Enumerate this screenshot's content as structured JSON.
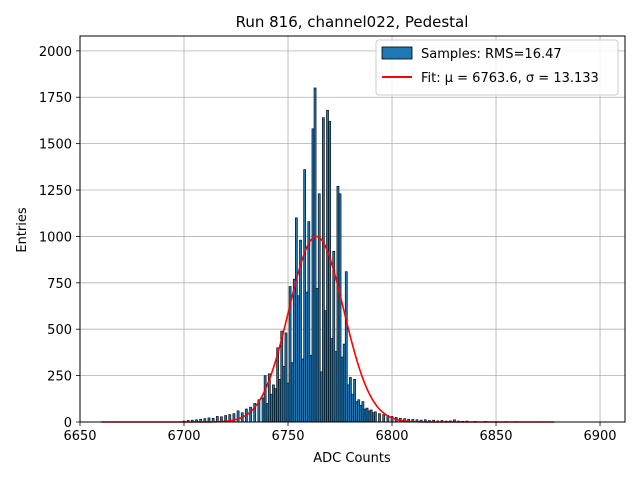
{
  "chart_data": {
    "type": "bar",
    "title": "Run 816, channel022, Pedestal",
    "xlabel": "ADC Counts",
    "ylabel": "Entries",
    "xlim": [
      6650,
      6912
    ],
    "ylim": [
      0,
      2080
    ],
    "xticks": [
      6650,
      6700,
      6750,
      6800,
      6850,
      6900
    ],
    "yticks": [
      0,
      250,
      500,
      750,
      1000,
      1250,
      1500,
      1750,
      2000
    ],
    "grid": true,
    "legend_placement": "top-right",
    "bar_color": "#1f77b4",
    "fit_color": "#ff0000",
    "series": [
      {
        "name": "Samples: RMS=16.47",
        "type": "histogram",
        "bin_width": 1,
        "bins": [
          [
            6700,
            5
          ],
          [
            6702,
            8
          ],
          [
            6704,
            10
          ],
          [
            6706,
            12
          ],
          [
            6708,
            15
          ],
          [
            6710,
            18
          ],
          [
            6712,
            22
          ],
          [
            6714,
            20
          ],
          [
            6716,
            30
          ],
          [
            6718,
            28
          ],
          [
            6720,
            35
          ],
          [
            6722,
            40
          ],
          [
            6724,
            45
          ],
          [
            6726,
            60
          ],
          [
            6728,
            50
          ],
          [
            6730,
            70
          ],
          [
            6732,
            80
          ],
          [
            6734,
            100
          ],
          [
            6736,
            120
          ],
          [
            6738,
            130
          ],
          [
            6739,
            250
          ],
          [
            6740,
            100
          ],
          [
            6741,
            260
          ],
          [
            6742,
            150
          ],
          [
            6743,
            200
          ],
          [
            6744,
            180
          ],
          [
            6745,
            400
          ],
          [
            6746,
            230
          ],
          [
            6747,
            490
          ],
          [
            6748,
            300
          ],
          [
            6749,
            480
          ],
          [
            6750,
            210
          ],
          [
            6751,
            730
          ],
          [
            6752,
            320
          ],
          [
            6753,
            770
          ],
          [
            6754,
            1100
          ],
          [
            6755,
            680
          ],
          [
            6756,
            980
          ],
          [
            6757,
            340
          ],
          [
            6758,
            1360
          ],
          [
            6759,
            700
          ],
          [
            6760,
            1080
          ],
          [
            6761,
            360
          ],
          [
            6762,
            1580
          ],
          [
            6763,
            1800
          ],
          [
            6764,
            720
          ],
          [
            6765,
            1230
          ],
          [
            6766,
            270
          ],
          [
            6767,
            1640
          ],
          [
            6768,
            600
          ],
          [
            6769,
            1680
          ],
          [
            6770,
            1620
          ],
          [
            6771,
            450
          ],
          [
            6772,
            920
          ],
          [
            6773,
            380
          ],
          [
            6774,
            1270
          ],
          [
            6775,
            1230
          ],
          [
            6776,
            350
          ],
          [
            6777,
            420
          ],
          [
            6778,
            810
          ],
          [
            6779,
            200
          ],
          [
            6780,
            240
          ],
          [
            6781,
            150
          ],
          [
            6782,
            230
          ],
          [
            6783,
            110
          ],
          [
            6784,
            120
          ],
          [
            6785,
            90
          ],
          [
            6786,
            110
          ],
          [
            6787,
            70
          ],
          [
            6788,
            75
          ],
          [
            6789,
            60
          ],
          [
            6790,
            65
          ],
          [
            6791,
            50
          ],
          [
            6792,
            55
          ],
          [
            6794,
            45
          ],
          [
            6796,
            40
          ],
          [
            6798,
            35
          ],
          [
            6800,
            30
          ],
          [
            6802,
            25
          ],
          [
            6804,
            20
          ],
          [
            6806,
            18
          ],
          [
            6808,
            15
          ],
          [
            6810,
            14
          ],
          [
            6812,
            12
          ],
          [
            6814,
            10
          ],
          [
            6816,
            12
          ],
          [
            6818,
            8
          ],
          [
            6820,
            10
          ],
          [
            6822,
            6
          ],
          [
            6824,
            8
          ],
          [
            6826,
            5
          ],
          [
            6828,
            6
          ],
          [
            6830,
            12
          ],
          [
            6832,
            5
          ],
          [
            6834,
            4
          ],
          [
            6836,
            5
          ],
          [
            6840,
            3
          ],
          [
            6845,
            3
          ],
          [
            6850,
            2
          ],
          [
            6855,
            2
          ],
          [
            6860,
            2
          ],
          [
            6870,
            1
          ]
        ]
      },
      {
        "name": "Fit: μ = 6763.6, σ = 13.133",
        "type": "gaussian_fit",
        "mu": 6763.6,
        "sigma": 13.133,
        "amplitude": 1000,
        "x_range": [
          6660,
          6878
        ]
      }
    ]
  }
}
